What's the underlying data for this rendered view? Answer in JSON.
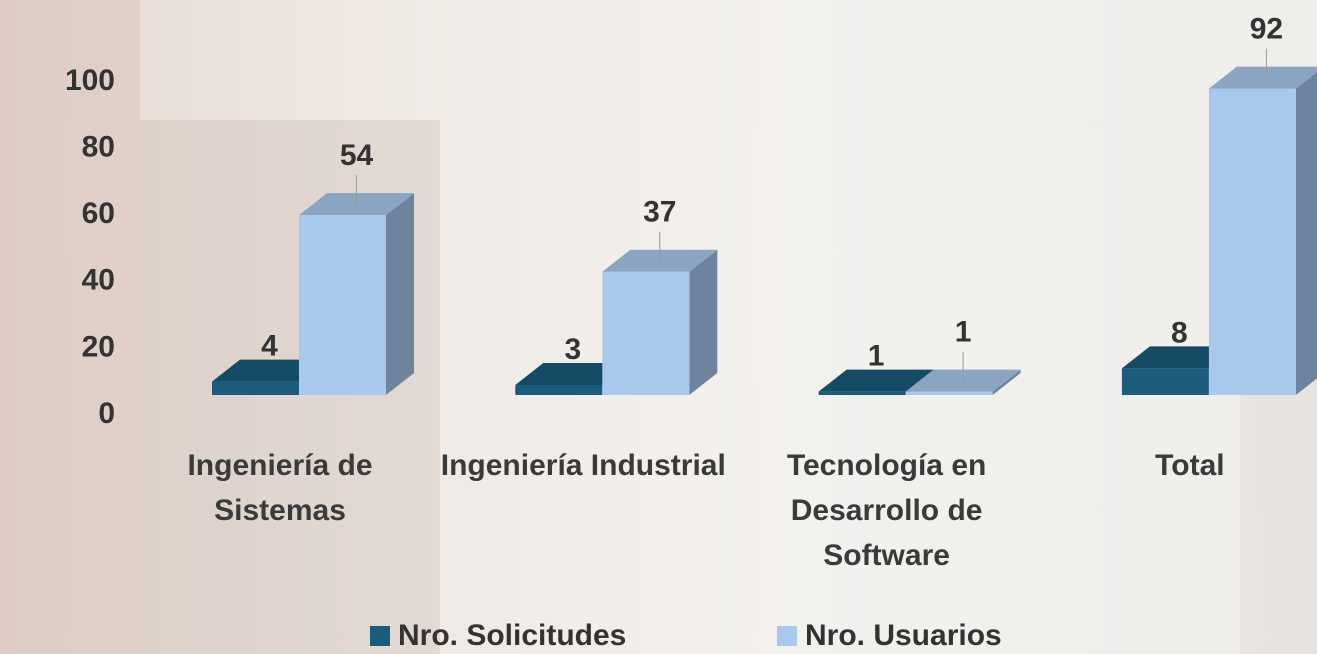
{
  "chart_data": {
    "type": "bar3d",
    "categories": [
      "Ingeniería de Sistemas",
      "Ingeniería Industrial",
      "Tecnología en Desarrollo de Software",
      "Total"
    ],
    "series": [
      {
        "name": "Nro. Solicitudes",
        "color": "#1a5c7a",
        "values": [
          4,
          3,
          1,
          8
        ]
      },
      {
        "name": "Nro. Usuarios",
        "color": "#a8c8ec",
        "values": [
          54,
          37,
          1,
          92
        ]
      }
    ],
    "ylim": [
      0,
      100
    ],
    "yticks": [
      0,
      20,
      40,
      60,
      80,
      100
    ],
    "legend": "bottom"
  }
}
